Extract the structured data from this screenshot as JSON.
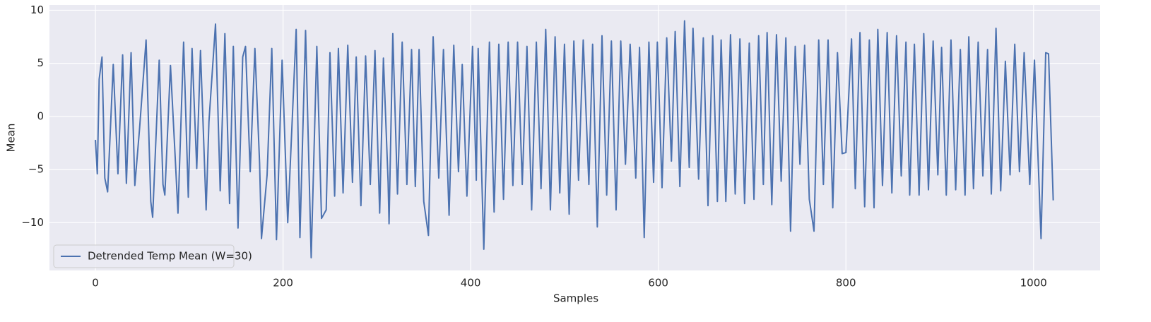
{
  "chart_data": {
    "type": "line",
    "x_label": "Samples",
    "y_label": "Mean",
    "xlim": [
      -49,
      1071
    ],
    "ylim": [
      -14.5,
      10.5
    ],
    "xticks": [
      0,
      200,
      400,
      600,
      800,
      1000
    ],
    "yticks": [
      {
        "value": -10,
        "label": "−10"
      },
      {
        "value": -5,
        "label": "−5"
      },
      0,
      5,
      10
    ],
    "grid": true,
    "legend": "lower left",
    "background": "#eaeaf2",
    "x": [
      0,
      2,
      4,
      7,
      10,
      13,
      19,
      24,
      29,
      33,
      38,
      42,
      47,
      54,
      59,
      61,
      68,
      72,
      74,
      80,
      85,
      88,
      94,
      99,
      103,
      108,
      112,
      118,
      121,
      128,
      133,
      138,
      143,
      147,
      152,
      157,
      160,
      165,
      170,
      175,
      177,
      183,
      188,
      193,
      199,
      205,
      214,
      218,
      224,
      230,
      236,
      241,
      246,
      250,
      255,
      259,
      264,
      269,
      274,
      278,
      283,
      288,
      293,
      298,
      303,
      307,
      312,
      313,
      317,
      322,
      327,
      332,
      337,
      341,
      345,
      350,
      355,
      360,
      366,
      371,
      377,
      382,
      387,
      391,
      396,
      402,
      406,
      408,
      414,
      420,
      425,
      430,
      435,
      440,
      445,
      450,
      455,
      460,
      465,
      470,
      475,
      480,
      485,
      490,
      495,
      500,
      505,
      510,
      515,
      520,
      526,
      530,
      535,
      540,
      545,
      550,
      555,
      560,
      565,
      570,
      576,
      580,
      585,
      590,
      595,
      599,
      604,
      609,
      614,
      618,
      623,
      628,
      633,
      637,
      643,
      648,
      653,
      658,
      663,
      667,
      672,
      677,
      682,
      687,
      692,
      697,
      702,
      707,
      712,
      716,
      721,
      726,
      731,
      736,
      741,
      746,
      751,
      756,
      761,
      766,
      771,
      776,
      781,
      786,
      791,
      796,
      800,
      806,
      810,
      815,
      820,
      825,
      830,
      834,
      839,
      844,
      849,
      854,
      859,
      864,
      868,
      873,
      878,
      883,
      888,
      893,
      898,
      902,
      907,
      912,
      917,
      922,
      927,
      931,
      936,
      941,
      946,
      951,
      955,
      960,
      965,
      970,
      975,
      980,
      985,
      990,
      996,
      1001,
      1008,
      1013,
      1016,
      1021
    ],
    "series": [
      {
        "name": "Detrended Temp Mean (W=30)",
        "color": "#4c72b0",
        "values": [
          -2.2,
          -5.4,
          3.5,
          5.6,
          -5.8,
          -7.1,
          4.9,
          -5.4,
          5.8,
          -6.3,
          6.0,
          -6.5,
          -1.2,
          7.2,
          -8.0,
          -9.5,
          5.3,
          -6.4,
          -7.4,
          4.8,
          -3.8,
          -9.1,
          7.0,
          -7.6,
          6.4,
          -4.9,
          6.2,
          -8.8,
          -0.5,
          8.7,
          -7.0,
          7.8,
          -8.2,
          6.6,
          -10.5,
          5.6,
          6.6,
          -5.2,
          6.4,
          -4.4,
          -11.5,
          -5.5,
          6.4,
          -11.6,
          5.3,
          -10.0,
          8.2,
          -11.4,
          8.1,
          -13.3,
          6.6,
          -9.6,
          -8.8,
          6.0,
          -7.5,
          6.4,
          -7.2,
          6.7,
          -6.2,
          5.6,
          -8.4,
          5.7,
          -6.4,
          6.2,
          -9.1,
          5.5,
          -6.2,
          -10.1,
          7.8,
          -7.3,
          7.0,
          -6.4,
          6.3,
          -6.6,
          6.3,
          -8.0,
          -11.2,
          7.5,
          -5.8,
          6.3,
          -9.3,
          6.7,
          -5.2,
          4.9,
          -7.5,
          6.6,
          -6.0,
          6.4,
          -12.5,
          7.0,
          -9.0,
          6.8,
          -7.8,
          7.0,
          -6.5,
          7.0,
          -6.4,
          6.6,
          -8.8,
          7.0,
          -6.8,
          8.2,
          -8.8,
          7.5,
          -7.2,
          6.8,
          -9.2,
          7.1,
          -6.0,
          7.2,
          -6.4,
          6.8,
          -10.4,
          7.6,
          -7.4,
          7.1,
          -8.8,
          7.1,
          -4.5,
          6.8,
          -5.8,
          6.5,
          -11.4,
          7.0,
          -6.2,
          7.0,
          -6.7,
          7.4,
          -4.2,
          8.0,
          -6.6,
          9.0,
          -4.8,
          8.3,
          -5.9,
          7.4,
          -8.4,
          7.6,
          -8.0,
          7.2,
          -8.0,
          7.7,
          -7.3,
          7.3,
          -8.2,
          6.9,
          -7.8,
          7.6,
          -6.4,
          7.9,
          -8.3,
          7.7,
          -6.1,
          7.4,
          -10.8,
          6.6,
          -4.5,
          6.7,
          -7.8,
          -10.8,
          7.2,
          -6.4,
          7.2,
          -8.6,
          6.0,
          -3.5,
          -3.4,
          7.3,
          -6.8,
          7.9,
          -8.5,
          7.2,
          -8.6,
          8.2,
          -6.5,
          7.9,
          -7.2,
          7.6,
          -5.6,
          7.0,
          -7.4,
          6.8,
          -7.4,
          7.8,
          -6.9,
          7.1,
          -5.5,
          6.5,
          -7.4,
          7.2,
          -6.9,
          6.3,
          -7.4,
          7.5,
          -6.8,
          7.0,
          -5.6,
          6.3,
          -7.3,
          8.3,
          -7.0,
          5.2,
          -5.5,
          6.8,
          -5.2,
          6.0,
          -6.4,
          5.3,
          -11.5,
          6.0,
          5.9,
          -7.9
        ]
      }
    ]
  }
}
